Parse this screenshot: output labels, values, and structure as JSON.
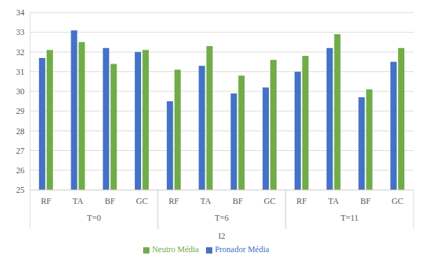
{
  "chart_data": {
    "type": "bar",
    "categories": [
      "RF",
      "TA",
      "BF",
      "GC",
      "RF",
      "TA",
      "BF",
      "GC",
      "RF",
      "TA",
      "BF",
      "GC"
    ],
    "groups": [
      "T=0",
      "T=6",
      "T=11"
    ],
    "xlabel": "I2",
    "series": [
      {
        "name": "Pronador Média",
        "color": "#4472c4",
        "values": [
          31.7,
          33.1,
          32.2,
          32.0,
          29.5,
          31.3,
          29.9,
          30.2,
          31.0,
          32.2,
          29.7,
          31.5
        ]
      },
      {
        "name": "Neutro Média",
        "color": "#70ad47",
        "values": [
          32.1,
          32.5,
          31.4,
          32.1,
          31.1,
          32.3,
          30.8,
          31.6,
          31.8,
          32.9,
          30.1,
          32.2
        ]
      }
    ],
    "ylim": [
      25,
      34
    ],
    "yticks": [
      25,
      26,
      27,
      28,
      29,
      30,
      31,
      32,
      33,
      34
    ],
    "grid": true,
    "legend": "bottom"
  }
}
